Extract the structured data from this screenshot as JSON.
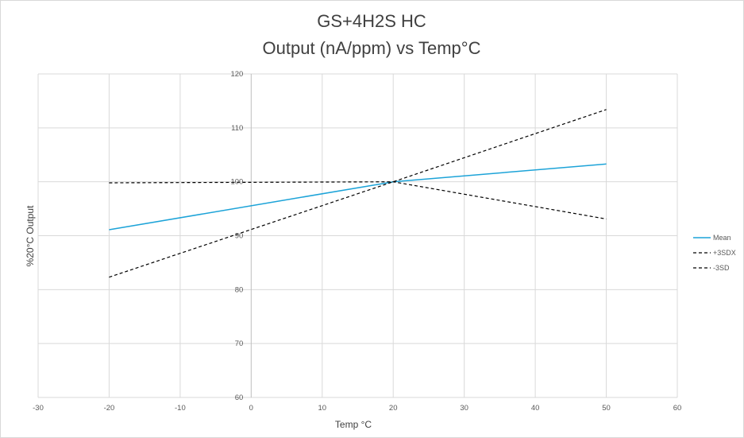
{
  "chart_data": {
    "type": "line",
    "title_lines": [
      "GS+4H2S HC",
      "Output (nA/ppm) vs Temp°C"
    ],
    "xlabel": "Temp °C",
    "ylabel": "%20°C Output",
    "xlim": [
      -30,
      60
    ],
    "ylim": [
      60,
      120
    ],
    "xticks": [
      -30,
      -20,
      -10,
      0,
      10,
      20,
      30,
      40,
      50,
      60
    ],
    "yticks": [
      60,
      70,
      80,
      90,
      100,
      110,
      120
    ],
    "grid": true,
    "legend_position": "right",
    "series": [
      {
        "name": "Mean",
        "x": [
          -20,
          20,
          50
        ],
        "y": [
          91.1,
          100,
          103.3
        ],
        "color": "#1ca3d8",
        "dash": "solid"
      },
      {
        "name": "+3SDX",
        "x": [
          -20,
          20,
          50
        ],
        "y": [
          82.3,
          100,
          113.4
        ],
        "color": "#000000",
        "dash": "dashed"
      },
      {
        "name": "-3SD",
        "x": [
          -20,
          20,
          50
        ],
        "y": [
          99.8,
          100,
          93.1
        ],
        "color": "#000000",
        "dash": "dashed"
      }
    ]
  }
}
